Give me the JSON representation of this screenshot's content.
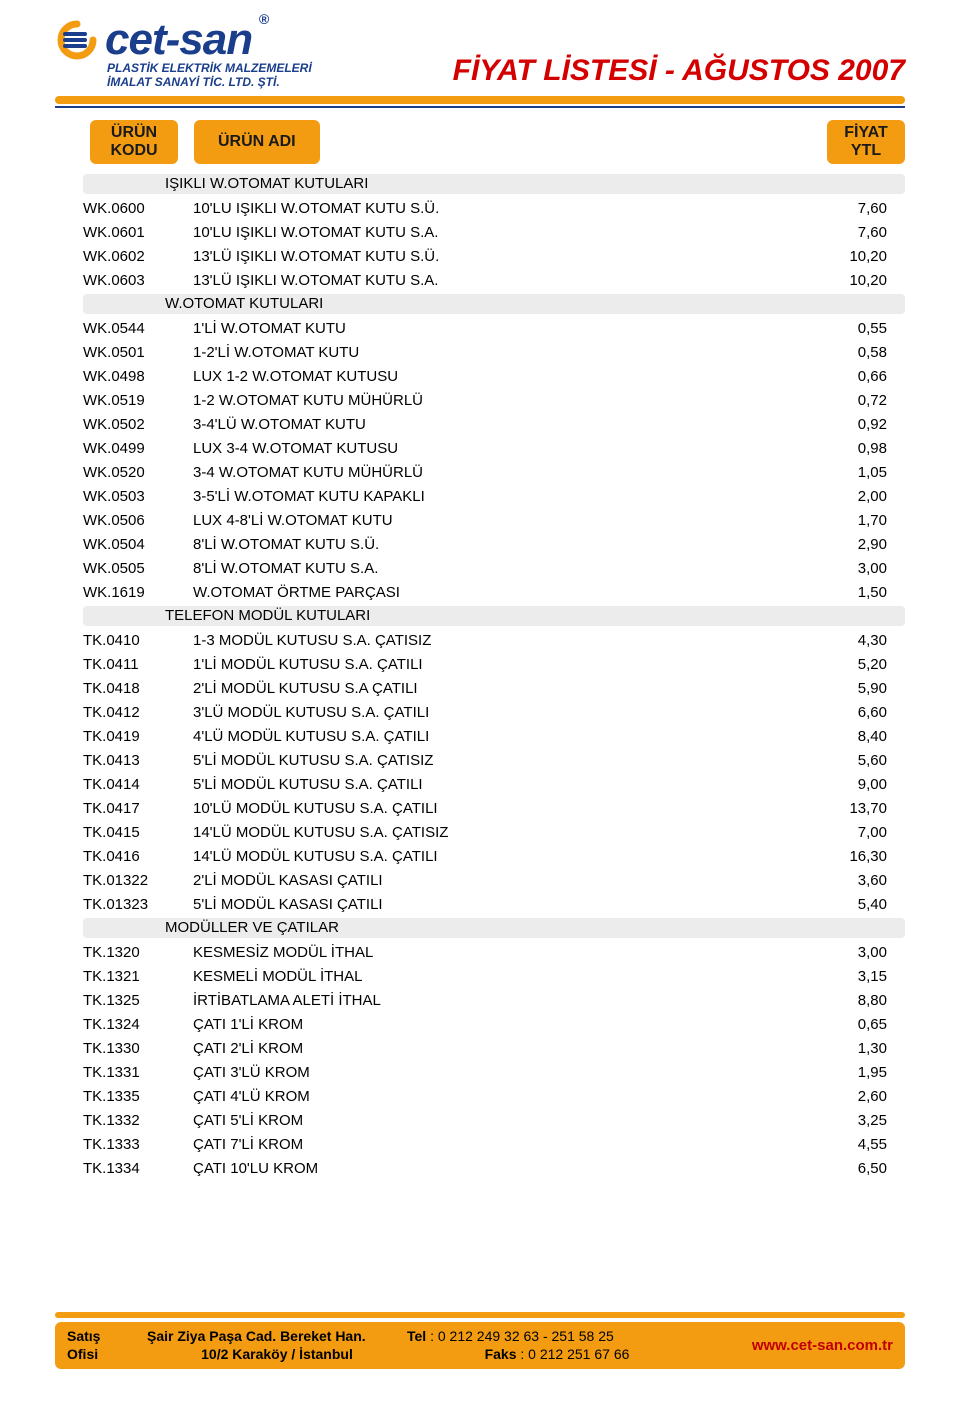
{
  "logo": {
    "brand": "cet-san",
    "reg": "®",
    "sub1": "PLASTİK ELEKTRİK MALZEMELERİ",
    "sub2": "İMALAT SANAYİ TİC. LTD. ŞTİ."
  },
  "header_title": "FİYAT LİSTESİ - AĞUSTOS 2007",
  "columns": {
    "kodu_l1": "ÜRÜN",
    "kodu_l2": "KODU",
    "adi": "ÜRÜN ADI",
    "ytl_l1": "FİYAT",
    "ytl_l2": "YTL"
  },
  "sections": [
    {
      "title": "IŞIKLI W.OTOMAT KUTULARI",
      "items": [
        {
          "code": "WK.0600",
          "name": "10'LU IŞIKLI W.OTOMAT KUTU S.Ü.",
          "price": "7,60"
        },
        {
          "code": "WK.0601",
          "name": "10'LU IŞIKLI W.OTOMAT KUTU S.A.",
          "price": "7,60"
        },
        {
          "code": "WK.0602",
          "name": "13'LÜ IŞIKLI W.OTOMAT KUTU S.Ü.",
          "price": "10,20"
        },
        {
          "code": "WK.0603",
          "name": "13'LÜ IŞIKLI W.OTOMAT KUTU S.A.",
          "price": "10,20"
        }
      ]
    },
    {
      "title": "W.OTOMAT KUTULARI",
      "items": [
        {
          "code": "WK.0544",
          "name": "1'Lİ W.OTOMAT KUTU",
          "price": "0,55"
        },
        {
          "code": "WK.0501",
          "name": "1-2'Lİ W.OTOMAT KUTU",
          "price": "0,58"
        },
        {
          "code": "WK.0498",
          "name": "LUX 1-2 W.OTOMAT KUTUSU",
          "price": "0,66"
        },
        {
          "code": "WK.0519",
          "name": "1-2 W.OTOMAT KUTU MÜHÜRLÜ",
          "price": "0,72"
        },
        {
          "code": "WK.0502",
          "name": "3-4'LÜ W.OTOMAT KUTU",
          "price": "0,92"
        },
        {
          "code": "WK.0499",
          "name": "LUX 3-4 W.OTOMAT KUTUSU",
          "price": "0,98"
        },
        {
          "code": "WK.0520",
          "name": "3-4 W.OTOMAT KUTU MÜHÜRLÜ",
          "price": "1,05"
        },
        {
          "code": "WK.0503",
          "name": "3-5'Lİ W.OTOMAT KUTU KAPAKLI",
          "price": "2,00"
        },
        {
          "code": "WK.0506",
          "name": "LUX 4-8'Lİ W.OTOMAT KUTU",
          "price": "1,70"
        },
        {
          "code": "WK.0504",
          "name": "8'Lİ W.OTOMAT KUTU S.Ü.",
          "price": "2,90"
        },
        {
          "code": "WK.0505",
          "name": "8'Lİ W.OTOMAT KUTU S.A.",
          "price": "3,00"
        },
        {
          "code": "WK.1619",
          "name": "W.OTOMAT ÖRTME PARÇASI",
          "price": "1,50"
        }
      ]
    },
    {
      "title": "TELEFON MODÜL KUTULARI",
      "items": [
        {
          "code": "TK.0410",
          "name": "1-3 MODÜL KUTUSU S.A. ÇATISIZ",
          "price": "4,30"
        },
        {
          "code": "TK.0411",
          "name": "1'Lİ MODÜL KUTUSU S.A. ÇATILI",
          "price": "5,20"
        },
        {
          "code": "TK.0418",
          "name": "2'Lİ MODÜL KUTUSU S.A ÇATILI",
          "price": "5,90"
        },
        {
          "code": "TK.0412",
          "name": "3'LÜ MODÜL KUTUSU S.A. ÇATILI",
          "price": "6,60"
        },
        {
          "code": "TK.0419",
          "name": "4'LÜ MODÜL KUTUSU S.A. ÇATILI",
          "price": "8,40"
        },
        {
          "code": "TK.0413",
          "name": "5'Lİ MODÜL KUTUSU S.A. ÇATISIZ",
          "price": "5,60"
        },
        {
          "code": "TK.0414",
          "name": "5'Lİ MODÜL KUTUSU S.A. ÇATILI",
          "price": "9,00"
        },
        {
          "code": "TK.0417",
          "name": "10'LÜ MODÜL KUTUSU S.A. ÇATILI",
          "price": "13,70"
        },
        {
          "code": "TK.0415",
          "name": "14'LÜ MODÜL KUTUSU S.A. ÇATISIZ",
          "price": "7,00"
        },
        {
          "code": "TK.0416",
          "name": "14'LÜ MODÜL KUTUSU S.A. ÇATILI",
          "price": "16,30"
        },
        {
          "code": "TK.01322",
          "name": "2'Lİ MODÜL KASASI ÇATILI",
          "price": "3,60"
        },
        {
          "code": "TK.01323",
          "name": "5'Lİ MODÜL KASASI ÇATILI",
          "price": "5,40"
        }
      ]
    },
    {
      "title": "MODÜLLER VE ÇATILAR",
      "items": [
        {
          "code": "TK.1320",
          "name": "KESMESİZ MODÜL İTHAL",
          "price": "3,00"
        },
        {
          "code": "TK.1321",
          "name": "KESMELİ MODÜL İTHAL",
          "price": "3,15"
        },
        {
          "code": "TK.1325",
          "name": "İRTİBATLAMA ALETİ İTHAL",
          "price": "8,80"
        },
        {
          "code": "TK.1324",
          "name": "ÇATI 1'Lİ KROM",
          "price": "0,65"
        },
        {
          "code": "TK.1330",
          "name": "ÇATI 2'Lİ KROM",
          "price": "1,30"
        },
        {
          "code": "TK.1331",
          "name": "ÇATI 3'LÜ KROM",
          "price": "1,95"
        },
        {
          "code": "TK.1335",
          "name": "ÇATI 4'LÜ KROM",
          "price": "2,60"
        },
        {
          "code": "TK.1332",
          "name": "ÇATI 5'Lİ KROM",
          "price": "3,25"
        },
        {
          "code": "TK.1333",
          "name": "ÇATI 7'Lİ KROM",
          "price": "4,55"
        },
        {
          "code": "TK.1334",
          "name": "ÇATI 10'LU KROM",
          "price": "6,50"
        }
      ]
    }
  ],
  "footer": {
    "col1_l1": "Satış",
    "col1_l2": "Ofisi",
    "col2_l1": "Şair Ziya Paşa Cad. Bereket Han.",
    "col2_l2": "10/2 Karaköy / İstanbul",
    "tel_lbl": "Tel",
    "tel_val": ": 0 212 249 32 63 - 251 58 25",
    "fax_lbl": "Faks",
    "fax_val": ": 0 212 251 67 66",
    "site": "www.cet-san.com.tr"
  },
  "colors": {
    "orange": "#f39c12",
    "blue": "#1a3e8c",
    "red": "#d40000",
    "section_bg": "#ececec",
    "text": "#000000",
    "background": "#ffffff"
  }
}
